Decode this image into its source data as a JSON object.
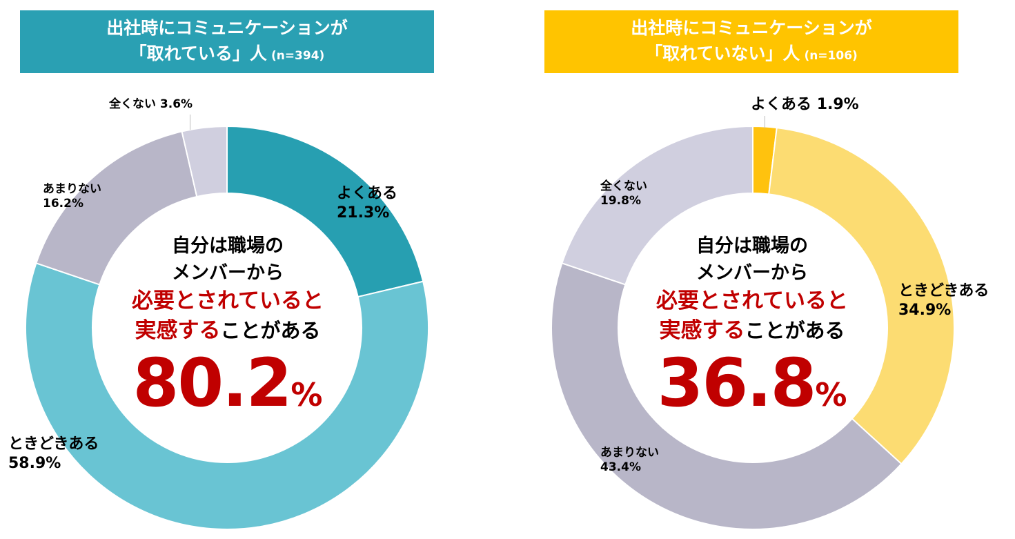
{
  "colors": {
    "teal_header": "#2aa0b3",
    "yellow_header": "#ffc400",
    "highlight_red": "#c00000"
  },
  "chart_data": [
    {
      "type": "pie",
      "variant": "donut",
      "title_line1": "出社時にコミュニケーションが",
      "title_line2": "「取れている」人",
      "sample_size": "(n=394)",
      "categories": [
        "よくある",
        "ときどきある",
        "あまりない",
        "全くない"
      ],
      "values": [
        21.3,
        58.9,
        16.2,
        3.6
      ],
      "colors": [
        "#279fb1",
        "#69c4d3",
        "#b8b6c8",
        "#d0cfdf"
      ],
      "labels": [
        "よくある\n21.3%",
        "ときどきある\n58.9%",
        "あまりない\n16.2%",
        "全くない 3.6%"
      ],
      "center_text": {
        "line1": "自分は職場の",
        "line2": "メンバーから",
        "line3": "必要とされていると",
        "line4_highlight": "実感する",
        "line4_rest": "ことがある",
        "value_num": "80.2",
        "value_unit": "%"
      }
    },
    {
      "type": "pie",
      "variant": "donut",
      "title_line1": "出社時にコミュニケーションが",
      "title_line2": "「取れていない」人",
      "sample_size": "(n=106)",
      "categories": [
        "よくある",
        "ときどきある",
        "あまりない",
        "全くない"
      ],
      "values": [
        1.9,
        34.9,
        43.4,
        19.8
      ],
      "colors": [
        "#ffc20e",
        "#fcdc72",
        "#b8b6c8",
        "#d0cfdf"
      ],
      "labels": [
        "よくある 1.9%",
        "ときどきある\n34.9%",
        "あまりない\n43.4%",
        "全くない\n19.8%"
      ],
      "center_text": {
        "line1": "自分は職場の",
        "line2": "メンバーから",
        "line3": "必要とされていると",
        "line4_highlight": "実感する",
        "line4_rest": "ことがある",
        "value_num": "36.8",
        "value_unit": "%"
      }
    }
  ]
}
